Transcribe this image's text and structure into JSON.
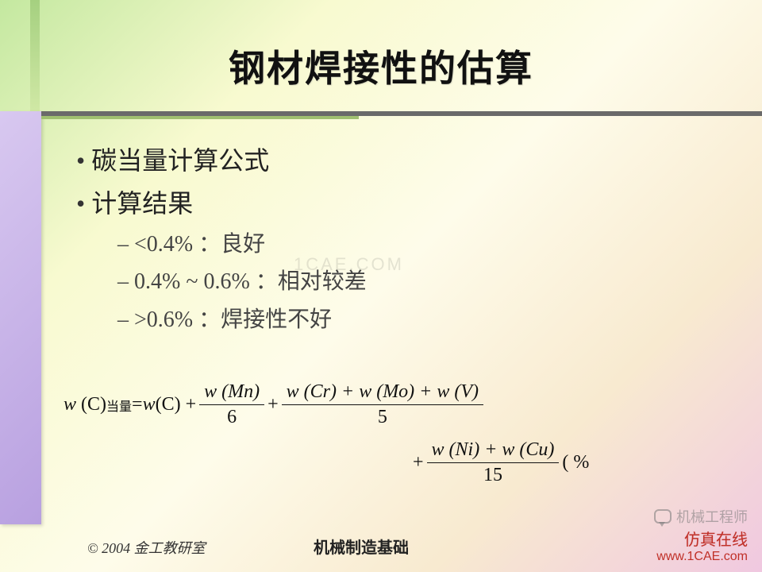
{
  "title": "钢材焊接性的估算",
  "bullets": {
    "b1a": "碳当量计算公式",
    "b1b": "计算结果",
    "b2a": "<0.4%  ：良好",
    "b2b": "0.4%  ~  0.6%  ：相对较差",
    "b2c": ">0.6%  ：焊接性不好"
  },
  "formula": {
    "lhs_w": "w",
    "lhs_C": "(C)",
    "lhs_sub": "当量",
    "eq": " = ",
    "t1_w": "w",
    "t1_p": " (C) + ",
    "f1_num": "w (Mn)",
    "f1_den": "6",
    "plus1": " + ",
    "f2_num": "w (Cr) + w (Mo) + w (V)",
    "f2_den": "5",
    "plus2": "+ ",
    "f3_num": "w (Ni) + w (Cu)",
    "f3_den": "15",
    "tail": "( %"
  },
  "watermark_center": "1CAE.COM",
  "footer": {
    "copyright": "© 2004 金工教研室",
    "title": "机械制造基础"
  },
  "wm": {
    "line1": "机械工程师",
    "line2": "仿真在线",
    "line3": "www.1CAE.com"
  }
}
